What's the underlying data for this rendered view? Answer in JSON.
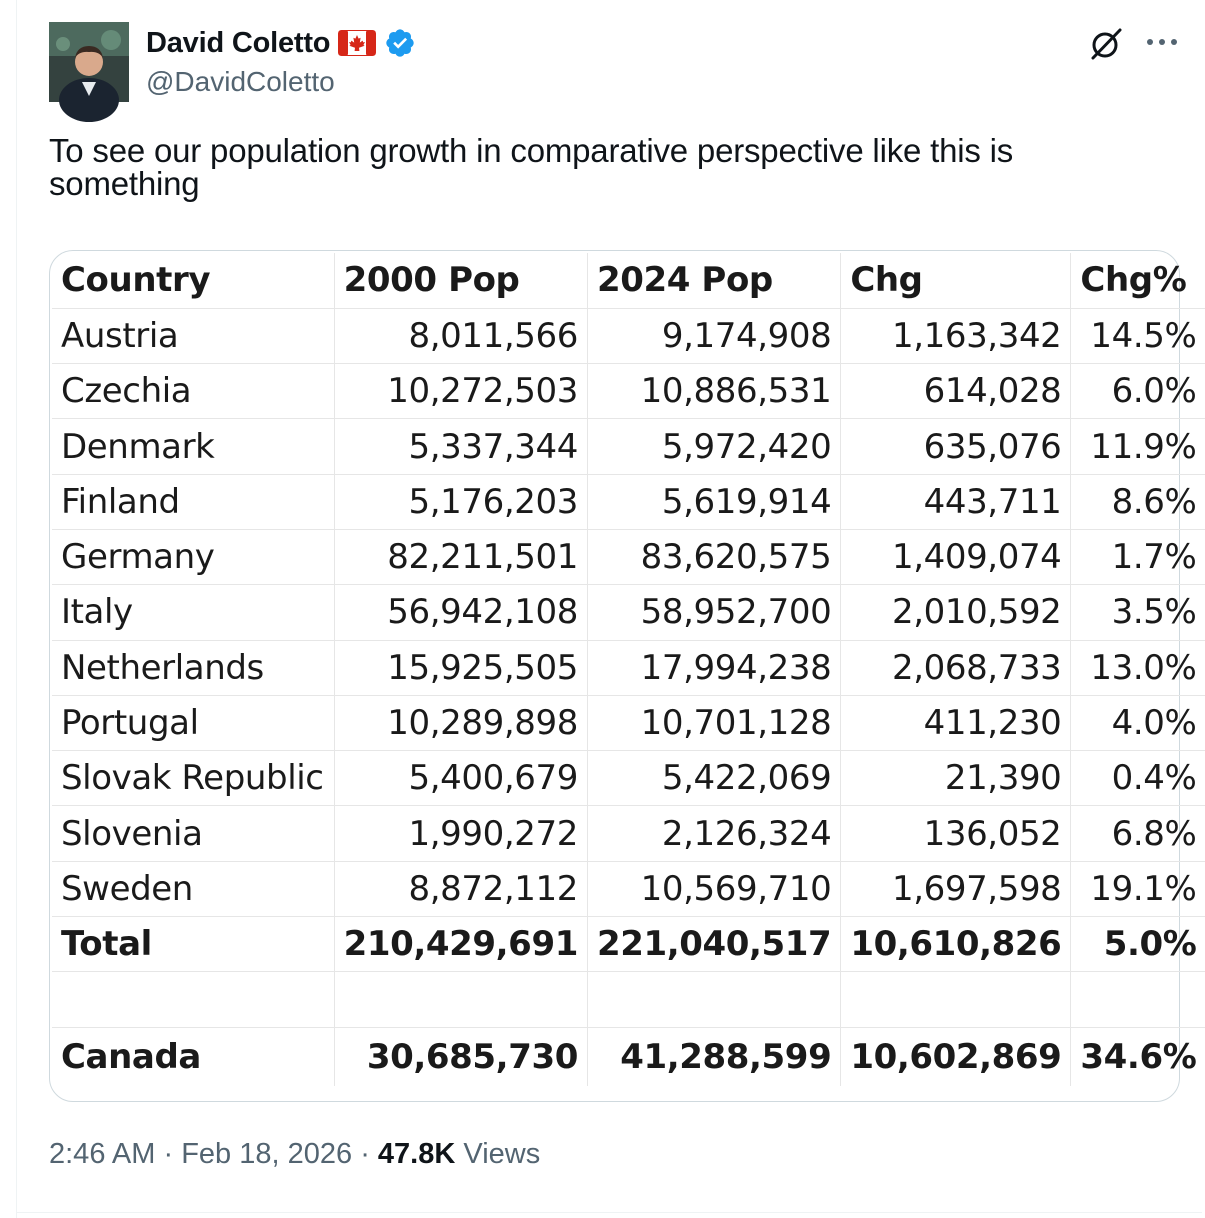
{
  "author": {
    "display_name": "David Coletto",
    "handle": "@DavidColetto",
    "flag_icon": "canada-flag-icon",
    "verified_icon": "verified-badge-icon",
    "verified_color": "#1d9bf0"
  },
  "header_actions": {
    "grok_icon": "grok-icon",
    "more_icon": "more-dots-icon"
  },
  "tweet": {
    "text_line1": "To see our population growth in comparative perspective like this is",
    "text_line2": "something"
  },
  "table": {
    "headers": [
      "Country",
      "2000 Pop",
      "2024 Pop",
      "Chg",
      "Chg%"
    ],
    "rows": [
      [
        "Austria",
        "8,011,566",
        "9,174,908",
        "1,163,342",
        "14.5%"
      ],
      [
        "Czechia",
        "10,272,503",
        "10,886,531",
        "614,028",
        "6.0%"
      ],
      [
        "Denmark",
        "5,337,344",
        "5,972,420",
        "635,076",
        "11.9%"
      ],
      [
        "Finland",
        "5,176,203",
        "5,619,914",
        "443,711",
        "8.6%"
      ],
      [
        "Germany",
        "82,211,501",
        "83,620,575",
        "1,409,074",
        "1.7%"
      ],
      [
        "Italy",
        "56,942,108",
        "58,952,700",
        "2,010,592",
        "3.5%"
      ],
      [
        "Netherlands",
        "15,925,505",
        "17,994,238",
        "2,068,733",
        "13.0%"
      ],
      [
        "Portugal",
        "10,289,898",
        "10,701,128",
        "411,230",
        "4.0%"
      ],
      [
        "Slovak Republic",
        "5,400,679",
        "5,422,069",
        "21,390",
        "0.4%"
      ],
      [
        "Slovenia",
        "1,990,272",
        "2,126,324",
        "136,052",
        "6.8%"
      ],
      [
        "Sweden",
        "8,872,112",
        "10,569,710",
        "1,697,598",
        "19.1%"
      ]
    ],
    "total": [
      "Total",
      "210,429,691",
      "221,040,517",
      "10,610,826",
      "5.0%"
    ],
    "canada": [
      "Canada",
      "30,685,730",
      "41,288,599",
      "10,602,869",
      "34.6%"
    ]
  },
  "meta": {
    "time": "2:46 AM",
    "date": "Feb 18, 2026",
    "separator": "·",
    "views_count": "47.8K",
    "views_label": "Views"
  }
}
